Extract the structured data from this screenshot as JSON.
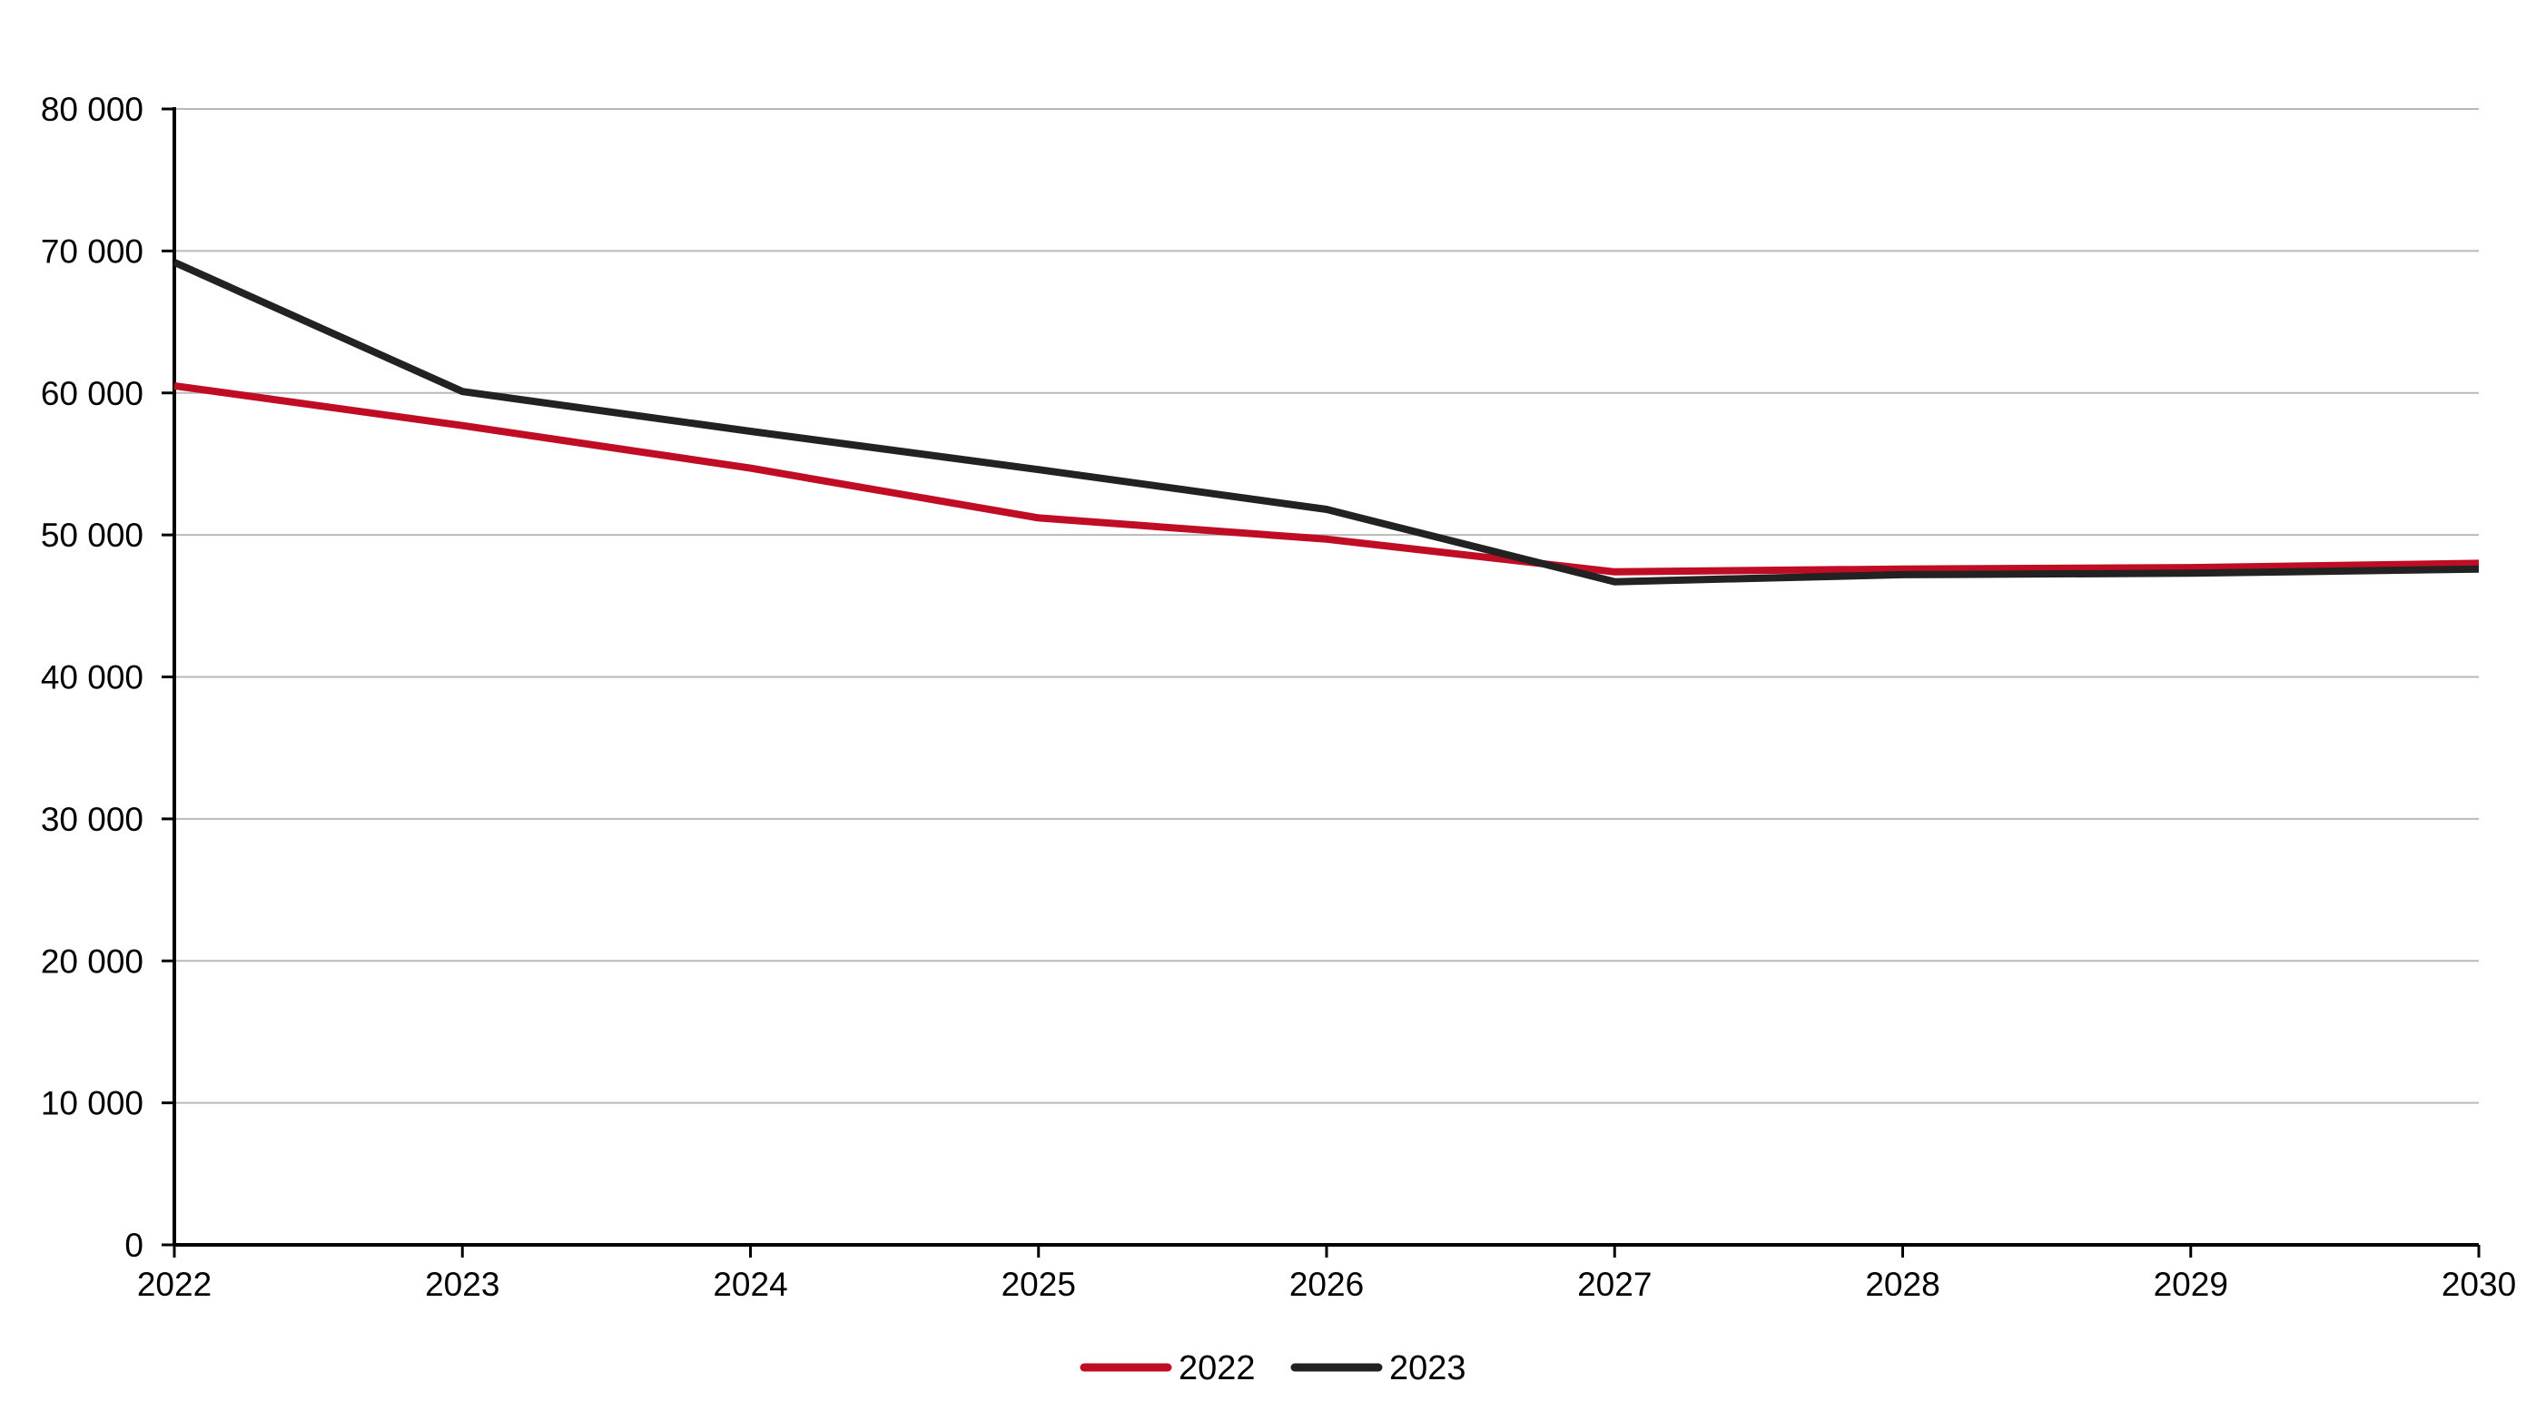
{
  "chart_data": {
    "type": "line",
    "title": "",
    "xlabel": "",
    "ylabel": "",
    "x": [
      "2022",
      "2023",
      "2024",
      "2025",
      "2026",
      "2027",
      "2028",
      "2029",
      "2030"
    ],
    "y_ticks": [
      "0",
      "10 000",
      "20 000",
      "30 000",
      "40 000",
      "50 000",
      "60 000",
      "70 000",
      "80 000"
    ],
    "y_tick_values": [
      0,
      10000,
      20000,
      30000,
      40000,
      50000,
      60000,
      70000,
      80000
    ],
    "ylim": [
      0,
      80000
    ],
    "grid": "horizontal",
    "legend_position": "bottom-center",
    "series": [
      {
        "name": "2022",
        "color": "#c00d25",
        "values": [
          60500,
          57700,
          54700,
          51200,
          49700,
          47400,
          47600,
          47700,
          48000
        ]
      },
      {
        "name": "2023",
        "color": "#222222",
        "values": [
          69200,
          60100,
          57300,
          54600,
          51800,
          46700,
          47200,
          47300,
          47600
        ]
      }
    ]
  }
}
